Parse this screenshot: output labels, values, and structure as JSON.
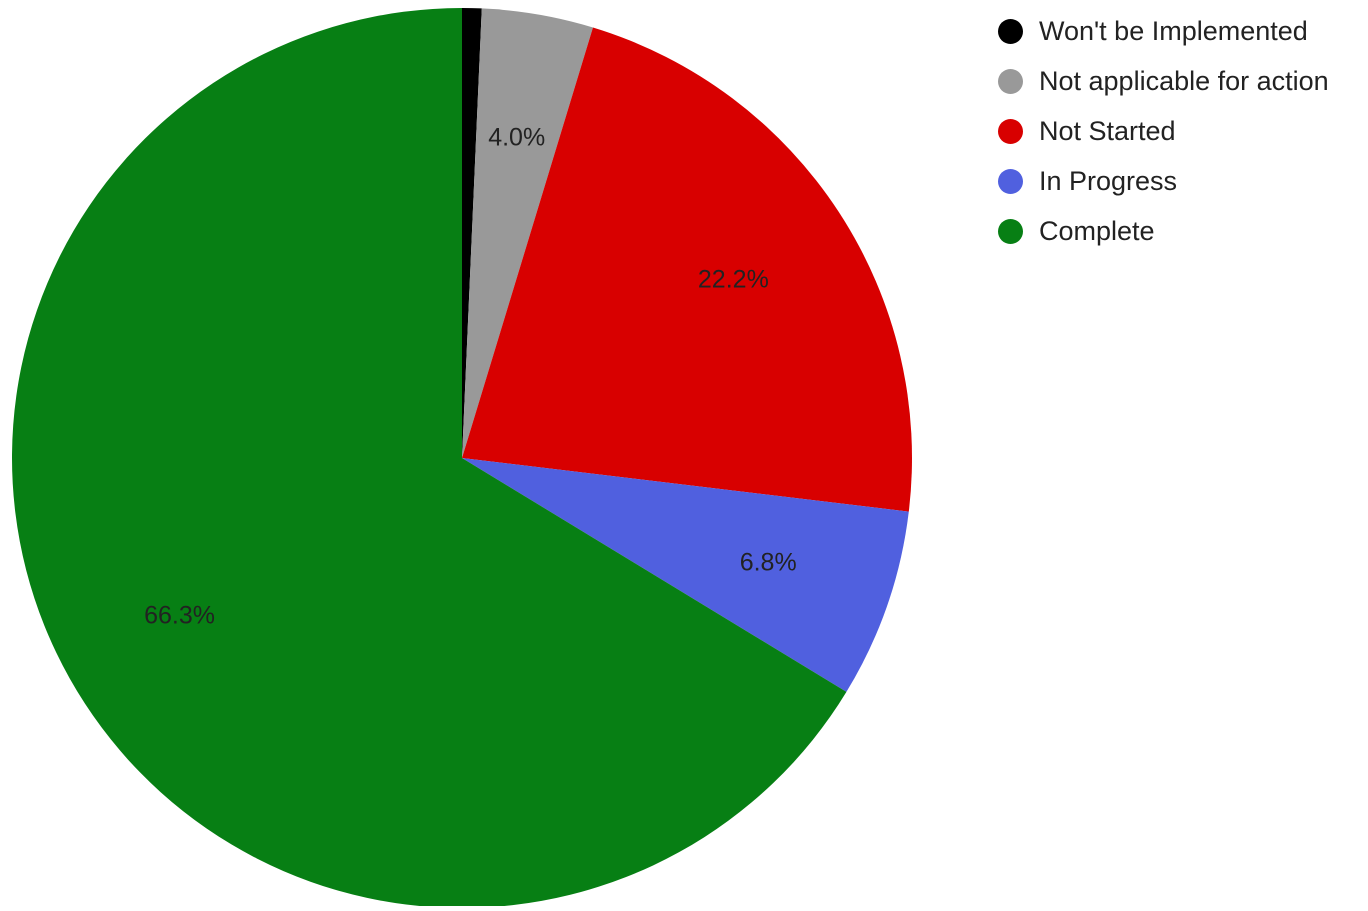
{
  "chart_data": {
    "type": "pie",
    "start_angle_deg": 0,
    "direction": "clockwise",
    "legend_position": "right",
    "slices": [
      {
        "name": "Won't be Implemented",
        "value": 0.7,
        "label": "",
        "color": "#000000"
      },
      {
        "name": "Not applicable for action",
        "value": 4.0,
        "label": "4.0%",
        "color": "#999999"
      },
      {
        "name": "Not Started",
        "value": 22.2,
        "label": "22.2%",
        "color": "#d80000"
      },
      {
        "name": "In Progress",
        "value": 6.8,
        "label": "6.8%",
        "color": "#5060df"
      },
      {
        "name": "Complete",
        "value": 66.3,
        "label": "66.3%",
        "color": "#077f14"
      }
    ]
  }
}
